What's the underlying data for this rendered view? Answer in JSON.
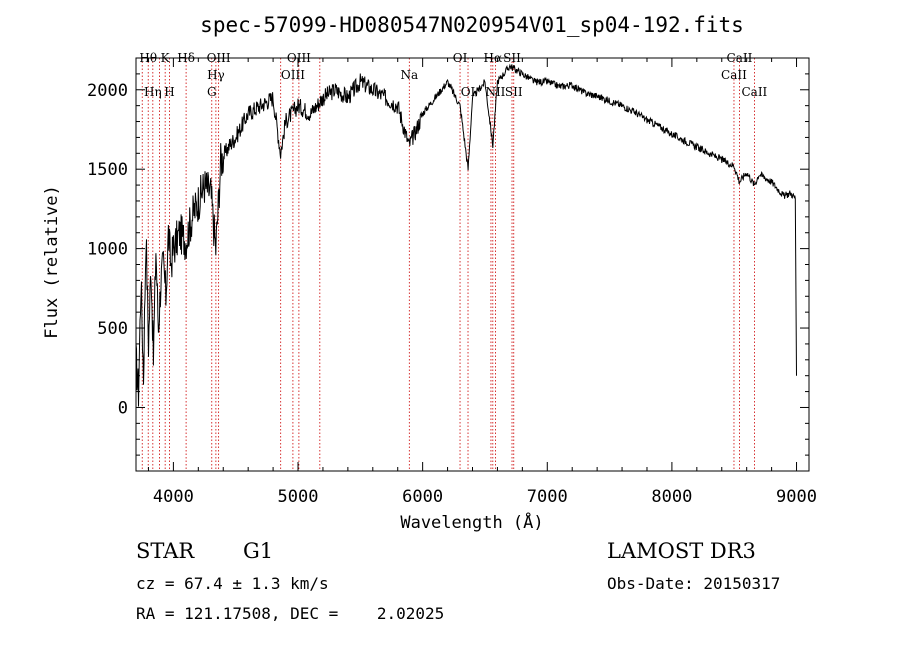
{
  "chart_data": {
    "type": "line",
    "title": "spec-57099-HD080547N020954V01_sp04-192.fits",
    "xlabel": "Wavelength (Å)",
    "ylabel": "Flux (relative)",
    "xlim": [
      3700,
      9100
    ],
    "ylim": [
      -400,
      2200
    ],
    "x_ticks": [
      4000,
      5000,
      6000,
      7000,
      8000,
      9000
    ],
    "x_tick_labels": [
      "4000",
      "5000",
      "6000",
      "7000",
      "8000",
      "9000"
    ],
    "y_ticks": [
      0,
      500,
      1000,
      1500,
      2000
    ],
    "y_tick_labels": [
      "0",
      "500",
      "1000",
      "1500",
      "2000"
    ],
    "grid": false,
    "series": [
      {
        "name": "spectrum",
        "color": "#000000",
        "x": [
          3700,
          3720,
          3740,
          3760,
          3780,
          3800,
          3820,
          3840,
          3860,
          3880,
          3900,
          3920,
          3940,
          3960,
          3980,
          4000,
          4050,
          4100,
          4150,
          4200,
          4250,
          4300,
          4340,
          4380,
          4450,
          4500,
          4600,
          4700,
          4800,
          4860,
          4900,
          5000,
          5100,
          5200,
          5300,
          5400,
          5500,
          5600,
          5700,
          5800,
          5890,
          5950,
          6000,
          6100,
          6200,
          6300,
          6365,
          6400,
          6500,
          6563,
          6600,
          6700,
          6800,
          6900,
          7000,
          7100,
          7200,
          7300,
          7400,
          7500,
          7600,
          7700,
          7800,
          7900,
          8000,
          8100,
          8200,
          8300,
          8400,
          8500,
          8542,
          8600,
          8662,
          8700,
          8800,
          8900,
          8950,
          8990,
          9000
        ],
        "values": [
          300,
          100,
          800,
          200,
          1100,
          400,
          900,
          300,
          1000,
          500,
          800,
          900,
          700,
          1100,
          900,
          1000,
          1100,
          1050,
          1200,
          1300,
          1400,
          1350,
          1000,
          1550,
          1650,
          1700,
          1850,
          1900,
          1950,
          1600,
          1800,
          1900,
          1850,
          1950,
          2000,
          1950,
          2050,
          2000,
          1950,
          1900,
          1650,
          1750,
          1850,
          1950,
          2050,
          1900,
          1500,
          1950,
          2050,
          1650,
          2050,
          2150,
          2100,
          2050,
          2050,
          2020,
          2030,
          1980,
          1960,
          1930,
          1900,
          1860,
          1810,
          1770,
          1720,
          1680,
          1640,
          1600,
          1560,
          1520,
          1420,
          1480,
          1400,
          1470,
          1420,
          1330,
          1350,
          1320,
          200
        ]
      }
    ],
    "line_markers": [
      {
        "label": "Hθ",
        "x": 3798,
        "row": 1
      },
      {
        "label": "Hη",
        "x": 3835,
        "row": 3
      },
      {
        "label": "K",
        "x": 3934,
        "row": 1
      },
      {
        "label": "H",
        "x": 3969,
        "row": 3
      },
      {
        "label": "Hδ",
        "x": 4102,
        "row": 1
      },
      {
        "label": "OIII",
        "x": 4363,
        "row": 1
      },
      {
        "label": "Hγ",
        "x": 4341,
        "row": 2
      },
      {
        "label": "G",
        "x": 4308,
        "row": 3
      },
      {
        "label": "OIII",
        "x": 5007,
        "row": 1
      },
      {
        "label": "OIII",
        "x": 4959,
        "row": 2
      },
      {
        "label": "Na",
        "x": 5893,
        "row": 2
      },
      {
        "label": "OI",
        "x": 6300,
        "row": 1
      },
      {
        "label": "OI",
        "x": 6364,
        "row": 3
      },
      {
        "label": "Hα",
        "x": 6563,
        "row": 1
      },
      {
        "label": "NII",
        "x": 6584,
        "row": 3
      },
      {
        "label": "SII",
        "x": 6717,
        "row": 1
      },
      {
        "label": "SII",
        "x": 6731,
        "row": 3
      },
      {
        "label": "CaII",
        "x": 8542,
        "row": 1
      },
      {
        "label": "CaII",
        "x": 8498,
        "row": 2
      },
      {
        "label": "CaII",
        "x": 8662,
        "row": 3
      }
    ],
    "marker_lines": [
      3750,
      3798,
      3835,
      3889,
      3934,
      3969,
      4102,
      4308,
      4341,
      4363,
      4861,
      4959,
      5007,
      5175,
      5893,
      6300,
      6364,
      6548,
      6563,
      6584,
      6717,
      6731,
      8498,
      8542,
      8662
    ]
  },
  "info": {
    "class_label": "STAR",
    "subclass": "G1",
    "survey": "LAMOST DR3",
    "redshift": "cz = 67.4 ± 1.3 km/s",
    "obs_date": "Obs-Date: 20150317",
    "coords": "RA = 121.17508, DEC =    2.02025"
  }
}
